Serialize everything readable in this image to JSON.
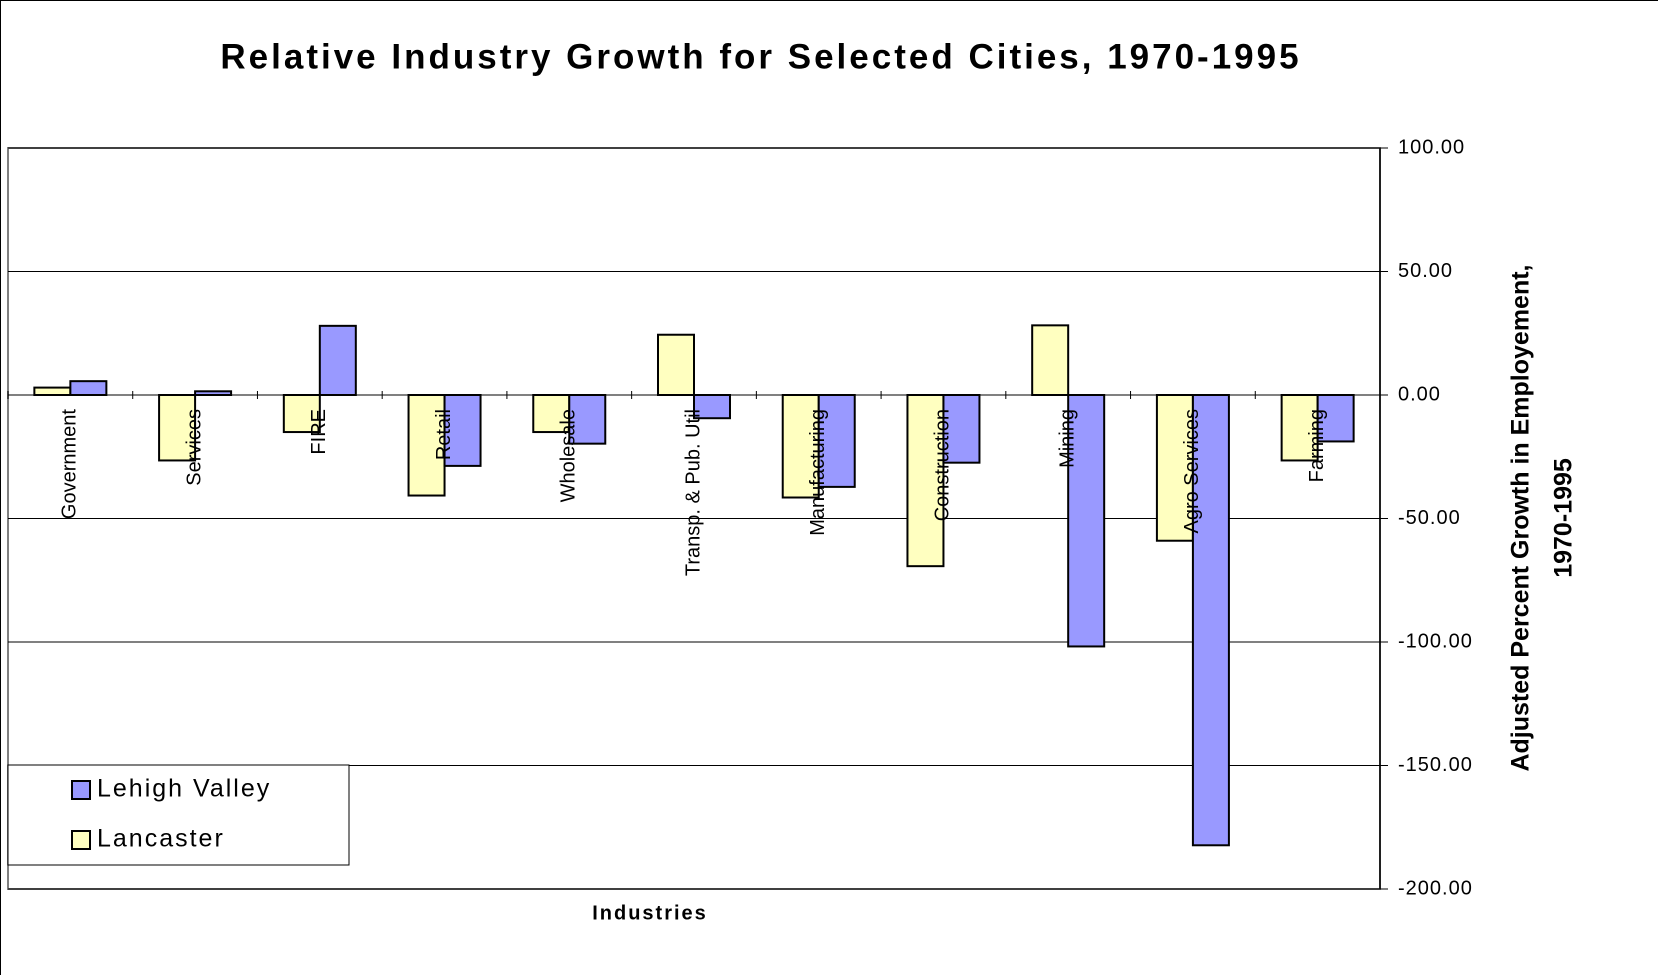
{
  "chart_data": {
    "type": "bar",
    "title": "Relative Industry Growth for Selected Cities, 1970-1995",
    "xlabel": "Industries",
    "ylabel": [
      "Adjusted Percent Growth in Employement,",
      "1970-1995"
    ],
    "categories": [
      "Government",
      "Services",
      "FIRE",
      "Retail",
      "Wholesale",
      "Transp. & Pub. Util",
      "Manufacturing",
      "Construction",
      "Mining",
      "Agro Services",
      "Farming"
    ],
    "series": [
      {
        "name": "Lancaster",
        "color": "#ffffc0",
        "values": [
          3,
          -26.5,
          -15,
          -40.7,
          -15,
          24.4,
          -41.5,
          -69.3,
          28.2,
          -59,
          -26.5
        ]
      },
      {
        "name": "Lehigh Valley",
        "color": "#9999ff",
        "values": [
          5.6,
          1.5,
          28,
          -28.7,
          -19.7,
          -9.4,
          -37.2,
          -27.4,
          -101.8,
          -182.3,
          -18.8
        ]
      }
    ],
    "ylim": [
      -200,
      100
    ],
    "yticks": [
      {
        "value": -200,
        "label": "-200.00"
      },
      {
        "value": -150,
        "label": "-150.00"
      },
      {
        "value": -100,
        "label": "-100.00"
      },
      {
        "value": -50,
        "label": "-50.00"
      },
      {
        "value": 0,
        "label": "0.00"
      },
      {
        "value": 50,
        "label": "50.00"
      },
      {
        "value": 100,
        "label": "100.00"
      }
    ],
    "grid": true,
    "legend": "lower left"
  }
}
